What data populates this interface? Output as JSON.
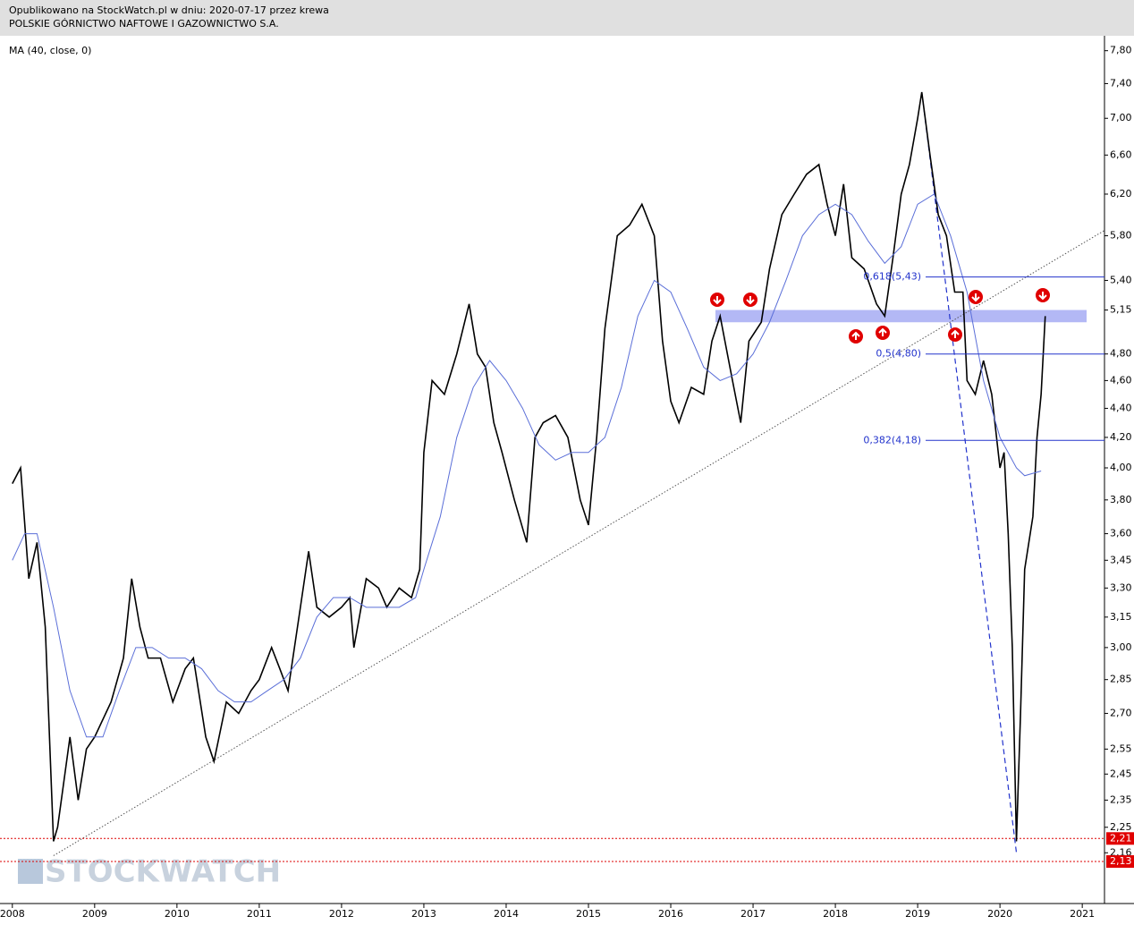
{
  "header": {
    "line1": "Opublikowano na StockWatch.pl w dniu: 2020-07-17 przez krewa",
    "line2": "POLSKIE GÓRNICTWO NAFTOWE I GAZOWNICTWO S.A."
  },
  "chart_data": {
    "type": "line",
    "log_scale": true,
    "watermark": "STOCKWATCH",
    "xlim": [
      2007.85,
      2021.27
    ],
    "xticks": [
      2008,
      2009,
      2010,
      2011,
      2012,
      2013,
      2014,
      2015,
      2016,
      2017,
      2018,
      2019,
      2020,
      2021
    ],
    "ylim": [
      2.0,
      8.0
    ],
    "yticks": [
      {
        "value": 7.8,
        "label": "7,80"
      },
      {
        "value": 7.4,
        "label": "7,40"
      },
      {
        "value": 7.0,
        "label": "7,00"
      },
      {
        "value": 6.6,
        "label": "6,60"
      },
      {
        "value": 6.2,
        "label": "6,20"
      },
      {
        "value": 5.8,
        "label": "5,80"
      },
      {
        "value": 5.4,
        "label": "5,40"
      },
      {
        "value": 5.15,
        "label": "5,15"
      },
      {
        "value": 4.8,
        "label": "4,80"
      },
      {
        "value": 4.6,
        "label": "4,60"
      },
      {
        "value": 4.4,
        "label": "4,40"
      },
      {
        "value": 4.2,
        "label": "4,20"
      },
      {
        "value": 4.0,
        "label": "4,00"
      },
      {
        "value": 3.8,
        "label": "3,80"
      },
      {
        "value": 3.6,
        "label": "3,60"
      },
      {
        "value": 3.45,
        "label": "3,45"
      },
      {
        "value": 3.3,
        "label": "3,30"
      },
      {
        "value": 3.15,
        "label": "3,15"
      },
      {
        "value": 3.0,
        "label": "3,00"
      },
      {
        "value": 2.85,
        "label": "2,85"
      },
      {
        "value": 2.7,
        "label": "2,70"
      },
      {
        "value": 2.55,
        "label": "2,55"
      },
      {
        "value": 2.45,
        "label": "2,45"
      },
      {
        "value": 2.35,
        "label": "2,35"
      },
      {
        "value": 2.25,
        "label": "2,25"
      },
      {
        "value": 2.16,
        "label": "2,16"
      }
    ],
    "series": [
      {
        "color": "#000000",
        "x": [
          2008.0,
          2008.1,
          2008.2,
          2008.3,
          2008.4,
          2008.5,
          2008.55,
          2008.7,
          2008.8,
          2008.9,
          2009.0,
          2009.2,
          2009.35,
          2009.45,
          2009.55,
          2009.65,
          2009.8,
          2009.95,
          2010.1,
          2010.2,
          2010.35,
          2010.45,
          2010.6,
          2010.75,
          2010.9,
          2011.0,
          2011.15,
          2011.25,
          2011.35,
          2011.5,
          2011.6,
          2011.7,
          2011.85,
          2012.0,
          2012.1,
          2012.15,
          2012.3,
          2012.45,
          2012.55,
          2012.7,
          2012.85,
          2012.95,
          2013.0,
          2013.1,
          2013.25,
          2013.4,
          2013.55,
          2013.65,
          2013.75,
          2013.85,
          2013.95,
          2014.1,
          2014.25,
          2014.35,
          2014.45,
          2014.6,
          2014.75,
          2014.9,
          2015.0,
          2015.1,
          2015.2,
          2015.35,
          2015.5,
          2015.65,
          2015.8,
          2015.9,
          2016.0,
          2016.1,
          2016.25,
          2016.4,
          2016.5,
          2016.6,
          2016.75,
          2016.85,
          2016.95,
          2017.1,
          2017.2,
          2017.35,
          2017.5,
          2017.65,
          2017.8,
          2017.9,
          2018.0,
          2018.1,
          2018.2,
          2018.35,
          2018.5,
          2018.6,
          2018.7,
          2018.8,
          2018.9,
          2019.0,
          2019.05,
          2019.15,
          2019.25,
          2019.35,
          2019.45,
          2019.55,
          2019.6,
          2019.7,
          2019.8,
          2019.9,
          2020.0,
          2020.05,
          2020.1,
          2020.15,
          2020.2,
          2020.25,
          2020.3,
          2020.4,
          2020.45,
          2020.5,
          2020.55
        ],
        "values": [
          3.9,
          4.0,
          3.35,
          3.55,
          3.1,
          2.2,
          2.25,
          2.6,
          2.35,
          2.55,
          2.6,
          2.75,
          2.95,
          3.35,
          3.1,
          2.95,
          2.95,
          2.75,
          2.9,
          2.95,
          2.6,
          2.5,
          2.75,
          2.7,
          2.8,
          2.85,
          3.0,
          2.9,
          2.8,
          3.2,
          3.5,
          3.2,
          3.15,
          3.2,
          3.25,
          3.0,
          3.35,
          3.3,
          3.2,
          3.3,
          3.25,
          3.4,
          4.1,
          4.6,
          4.5,
          4.8,
          5.2,
          4.8,
          4.7,
          4.3,
          4.1,
          3.8,
          3.55,
          4.2,
          4.3,
          4.35,
          4.2,
          3.8,
          3.65,
          4.2,
          5.0,
          5.8,
          5.9,
          6.1,
          5.8,
          4.9,
          4.45,
          4.3,
          4.55,
          4.5,
          4.9,
          5.1,
          4.6,
          4.3,
          4.9,
          5.05,
          5.5,
          6.0,
          6.2,
          6.4,
          6.5,
          6.1,
          5.8,
          6.3,
          5.6,
          5.5,
          5.2,
          5.1,
          5.6,
          6.2,
          6.5,
          7.0,
          7.3,
          6.6,
          6.0,
          5.8,
          5.3,
          5.3,
          4.6,
          4.5,
          4.75,
          4.5,
          4.0,
          4.1,
          3.6,
          3.0,
          2.2,
          2.7,
          3.4,
          3.7,
          4.2,
          4.5,
          5.1
        ]
      },
      {
        "name": "MA (40, close, 0)",
        "color": "#5b6fd8",
        "x": [
          2008.0,
          2008.15,
          2008.3,
          2008.5,
          2008.7,
          2008.9,
          2009.1,
          2009.3,
          2009.5,
          2009.7,
          2009.9,
          2010.1,
          2010.3,
          2010.5,
          2010.7,
          2010.9,
          2011.1,
          2011.3,
          2011.5,
          2011.7,
          2011.9,
          2012.1,
          2012.3,
          2012.5,
          2012.7,
          2012.9,
          2013.0,
          2013.2,
          2013.4,
          2013.6,
          2013.8,
          2014.0,
          2014.2,
          2014.4,
          2014.6,
          2014.8,
          2015.0,
          2015.2,
          2015.4,
          2015.6,
          2015.8,
          2016.0,
          2016.2,
          2016.4,
          2016.6,
          2016.8,
          2017.0,
          2017.2,
          2017.4,
          2017.6,
          2017.8,
          2018.0,
          2018.2,
          2018.4,
          2018.6,
          2018.8,
          2019.0,
          2019.2,
          2019.4,
          2019.6,
          2019.8,
          2020.0,
          2020.2,
          2020.3,
          2020.5
        ],
        "values": [
          3.45,
          3.6,
          3.6,
          3.2,
          2.8,
          2.6,
          2.6,
          2.8,
          3.0,
          3.0,
          2.95,
          2.95,
          2.9,
          2.8,
          2.75,
          2.75,
          2.8,
          2.85,
          2.95,
          3.15,
          3.25,
          3.25,
          3.2,
          3.2,
          3.2,
          3.25,
          3.4,
          3.7,
          4.2,
          4.55,
          4.75,
          4.6,
          4.4,
          4.15,
          4.05,
          4.1,
          4.1,
          4.2,
          4.55,
          5.1,
          5.4,
          5.3,
          5.0,
          4.7,
          4.6,
          4.65,
          4.8,
          5.05,
          5.4,
          5.8,
          6.0,
          6.1,
          6.0,
          5.75,
          5.55,
          5.7,
          6.1,
          6.2,
          5.8,
          5.3,
          4.6,
          4.2,
          4.0,
          3.95,
          3.98
        ]
      }
    ],
    "fib_levels": [
      {
        "label": "0,618(5,43)",
        "value": 5.43
      },
      {
        "label": "0,5(4,80)",
        "value": 4.8
      },
      {
        "label": "0,382(4,18)",
        "value": 4.18
      }
    ],
    "support_lines": [
      {
        "label": "2,21",
        "value": 2.21
      },
      {
        "label": "2,13",
        "value": 2.13
      }
    ],
    "zone": [
      5.05,
      5.15
    ],
    "trendline": {
      "x": [
        2008.5,
        2021.27
      ],
      "values": [
        2.15,
        5.85
      ]
    },
    "fib_swing": {
      "x": [
        2019.05,
        2020.2
      ],
      "values": [
        7.3,
        2.16
      ]
    }
  }
}
